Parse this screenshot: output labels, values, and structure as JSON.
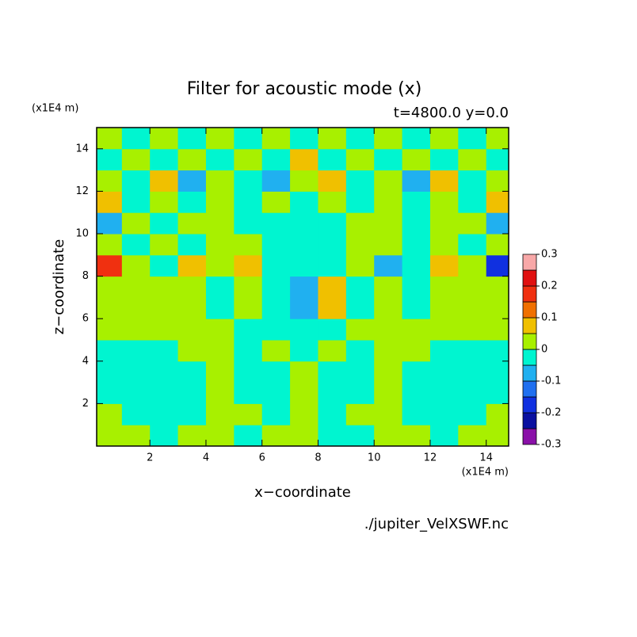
{
  "chart_data": {
    "type": "contour",
    "title": "Filter for acoustic mode (x)",
    "subtitle": "t=4800.0 y=0.0",
    "xlabel": "x−coordinate",
    "ylabel": "z−coordinate",
    "x_unit": "(x1E4 m)",
    "y_unit": "(x1E4 m)",
    "footnote": "./jupiter_VelXSWF.nc",
    "xlim": [
      0.1,
      14.8
    ],
    "ylim": [
      0,
      15
    ],
    "xticks": [
      2,
      4,
      6,
      8,
      10,
      12,
      14
    ],
    "yticks": [
      2,
      4,
      6,
      8,
      10,
      12,
      14
    ],
    "x": [
      0.5,
      1.5,
      2.5,
      3.5,
      4.5,
      5.5,
      6.5,
      7.5,
      8.5,
      9.5,
      10.5,
      11.5,
      12.5,
      13.5,
      14.5
    ],
    "y": [
      0.5,
      1.5,
      2.5,
      3.5,
      4.5,
      5.5,
      6.5,
      7.5,
      8.5,
      9.5,
      10.5,
      11.5,
      12.5,
      13.5,
      14.5
    ],
    "z": [
      [
        0.02,
        0.02,
        -0.02,
        0.02,
        0.02,
        -0.02,
        0.02,
        0.02,
        -0.02,
        -0.02,
        0.02,
        0.02,
        -0.02,
        0.02,
        0.02
      ],
      [
        0.02,
        -0.02,
        -0.02,
        -0.02,
        0.02,
        0.02,
        -0.02,
        0.02,
        -0.02,
        0.02,
        0.02,
        -0.02,
        -0.02,
        -0.02,
        0.02
      ],
      [
        -0.02,
        -0.02,
        -0.02,
        -0.02,
        0.02,
        -0.02,
        -0.02,
        0.02,
        -0.02,
        -0.02,
        0.02,
        -0.02,
        -0.02,
        -0.02,
        -0.02
      ],
      [
        -0.02,
        -0.02,
        -0.02,
        -0.02,
        0.02,
        -0.02,
        -0.02,
        0.02,
        -0.02,
        -0.02,
        0.02,
        -0.02,
        -0.02,
        -0.02,
        -0.02
      ],
      [
        -0.02,
        -0.02,
        -0.02,
        0.02,
        0.02,
        -0.02,
        0.02,
        -0.02,
        0.02,
        -0.02,
        0.02,
        0.02,
        -0.02,
        -0.02,
        -0.02
      ],
      [
        0.02,
        0.02,
        0.02,
        0.02,
        0.02,
        -0.02,
        -0.02,
        -0.02,
        -0.02,
        0.02,
        0.02,
        0.02,
        0.02,
        0.02,
        0.02
      ],
      [
        0.02,
        0.02,
        0.02,
        0.02,
        -0.02,
        0.02,
        -0.02,
        -0.07,
        0.07,
        -0.02,
        0.02,
        -0.02,
        0.02,
        0.02,
        0.02
      ],
      [
        0.02,
        0.02,
        0.02,
        0.02,
        -0.02,
        0.02,
        -0.02,
        -0.07,
        0.07,
        -0.02,
        0.02,
        -0.02,
        0.02,
        0.02,
        0.02
      ],
      [
        0.17,
        0.02,
        -0.02,
        0.07,
        0.02,
        0.07,
        -0.02,
        -0.02,
        -0.02,
        0.02,
        -0.07,
        -0.02,
        0.07,
        0.02,
        -0.17
      ],
      [
        0.02,
        -0.02,
        0.02,
        -0.02,
        0.02,
        0.02,
        -0.02,
        -0.02,
        -0.02,
        0.02,
        0.02,
        -0.02,
        0.02,
        -0.02,
        0.02
      ],
      [
        -0.07,
        0.02,
        -0.02,
        0.02,
        0.02,
        -0.02,
        -0.02,
        -0.02,
        -0.02,
        0.02,
        0.02,
        -0.02,
        0.02,
        0.02,
        -0.07
      ],
      [
        0.07,
        -0.02,
        0.02,
        -0.02,
        0.02,
        -0.02,
        0.02,
        -0.02,
        0.02,
        -0.02,
        0.02,
        -0.02,
        0.02,
        -0.02,
        0.07
      ],
      [
        0.02,
        -0.02,
        0.07,
        -0.07,
        0.02,
        -0.02,
        -0.07,
        0.02,
        0.07,
        -0.02,
        0.02,
        -0.07,
        0.07,
        -0.02,
        0.02
      ],
      [
        -0.02,
        0.02,
        -0.02,
        0.02,
        -0.02,
        0.02,
        -0.02,
        0.07,
        -0.02,
        0.02,
        -0.02,
        0.02,
        -0.02,
        0.02,
        -0.02
      ],
      [
        0.02,
        -0.02,
        0.02,
        -0.02,
        0.02,
        -0.02,
        0.02,
        -0.02,
        0.02,
        -0.02,
        0.02,
        -0.02,
        0.02,
        -0.02,
        0.02
      ]
    ],
    "levels": [
      -0.3,
      -0.25,
      -0.2,
      -0.15,
      -0.1,
      -0.05,
      0,
      0.05,
      0.1,
      0.15,
      0.2,
      0.25,
      0.3
    ],
    "level_colors": [
      "#8a10a8",
      "#0a10a0",
      "#1030e0",
      "#2070f0",
      "#20b0f0",
      "#00f5d0",
      "#a8f000",
      "#f0c000",
      "#f07000",
      "#f03010",
      "#e01010",
      "#f8a8a8"
    ],
    "colorbar_ticks": [
      -0.3,
      -0.2,
      -0.1,
      0,
      0.1,
      0.2,
      0.3
    ]
  }
}
